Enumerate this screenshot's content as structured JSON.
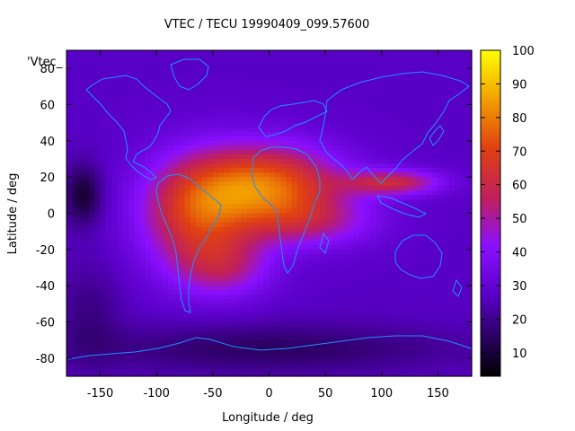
{
  "chart_data": {
    "type": "heatmap",
    "title": "VTEC / TECU 19990409_099.57600",
    "xlabel": "Longitude / deg",
    "ylabel": "Latitude / deg",
    "legend_entry": "'Vtec_",
    "xlim": [
      -180,
      180
    ],
    "ylim": [
      -90,
      90
    ],
    "x_ticks": [
      -150,
      -100,
      -50,
      0,
      50,
      100,
      150
    ],
    "y_ticks": [
      -80,
      -60,
      -40,
      -20,
      0,
      20,
      40,
      60,
      80
    ],
    "colorbar": {
      "min": 3,
      "max": 100,
      "ticks": [
        10,
        20,
        30,
        40,
        50,
        60,
        70,
        80,
        90,
        100
      ]
    },
    "coastline_color": "#1e90ff",
    "background_level": 27,
    "hotspots": [
      {
        "lon": 0,
        "lat": 15,
        "sigma_lon": 45,
        "sigma_lat": 16,
        "value": 48
      },
      {
        "lon": -65,
        "lat": 0,
        "sigma_lon": 35,
        "sigma_lat": 22,
        "value": 38
      },
      {
        "lon": 110,
        "lat": 17,
        "sigma_lon": 30,
        "sigma_lat": 5,
        "value": 32
      },
      {
        "lon": -40,
        "lat": -30,
        "sigma_lon": 30,
        "sigma_lat": 12,
        "value": 20
      },
      {
        "lon": 40,
        "lat": -5,
        "sigma_lon": 40,
        "sigma_lat": 10,
        "value": 18
      }
    ],
    "coldspots": [
      {
        "lon": -165,
        "lat": 10,
        "sigma_lon": 12,
        "sigma_lat": 12,
        "value": 18
      },
      {
        "lon": 0,
        "lat": -75,
        "sigma_lon": 120,
        "sigma_lat": 10,
        "value": 12
      },
      {
        "lon": -160,
        "lat": -55,
        "sigma_lon": 20,
        "sigma_lat": 20,
        "value": 8
      }
    ]
  }
}
